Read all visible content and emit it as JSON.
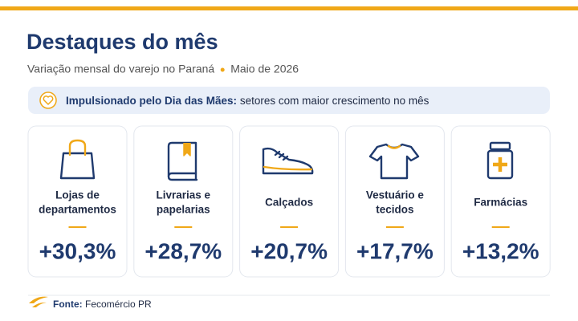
{
  "header": {
    "title": "Destaques do mês",
    "subtitle": "Variação mensal do varejo no Paraná",
    "date": "Maio de 2026"
  },
  "banner": {
    "bold": "Impulsionado pelo Dia das Mães:",
    "text": "setores com maior crescimento no mês"
  },
  "cards": [
    {
      "label": [
        "Lojas de",
        "departamentos"
      ],
      "value": "+30,3%"
    },
    {
      "label": [
        "Livrarias e",
        "papelarias"
      ],
      "value": "+28,7%"
    },
    {
      "label": [
        "Calçados"
      ],
      "value": "+20,7%"
    },
    {
      "label": [
        "Vestuário e",
        "tecidos"
      ],
      "value": "+17,7%"
    },
    {
      "label": [
        "Farmácias"
      ],
      "value": "+13,2%"
    }
  ],
  "footer": {
    "label": "Fonte:",
    "source": "Fecomércio PR"
  }
}
